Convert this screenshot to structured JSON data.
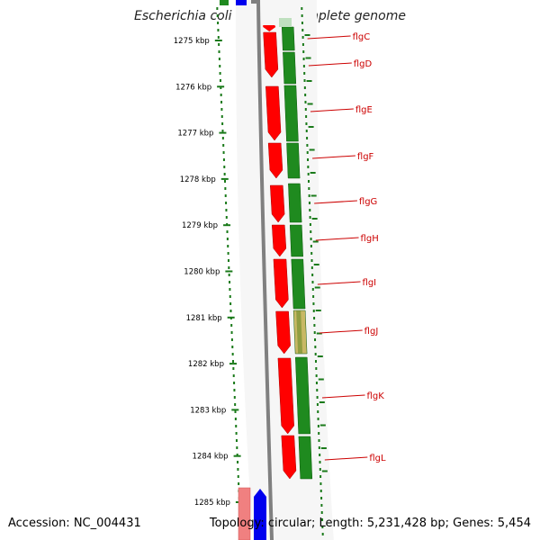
{
  "map": {
    "title": "Escherichia coli CFT073, complete genome",
    "accession": "Accession: NC_004431",
    "summary": "Topology: circular; Length: 5,231,428 bp; Genes: 5,454"
  },
  "colors": {
    "gene_strand": "#ff0000",
    "cds_track": "#1f8a1f",
    "cds_track_alt": "#c8b864",
    "backbone": "#808080",
    "label": "#cc0000",
    "scale": "#1a7a1a",
    "partial_red": "#f08080",
    "partial_blue": "#0000ee"
  },
  "scale": {
    "ticks": [
      {
        "label": "1275 kbp"
      },
      {
        "label": "1276 kbp"
      },
      {
        "label": "1277 kbp"
      },
      {
        "label": "1278 kbp"
      },
      {
        "label": "1279 kbp"
      },
      {
        "label": "1280 kbp"
      },
      {
        "label": "1281 kbp"
      },
      {
        "label": "1282 kbp"
      },
      {
        "label": "1283 kbp"
      },
      {
        "label": "1284 kbp"
      },
      {
        "label": "1285 kbp"
      }
    ]
  },
  "genes": [
    {
      "name": "flgC"
    },
    {
      "name": "flgD"
    },
    {
      "name": "flgE"
    },
    {
      "name": "flgF"
    },
    {
      "name": "flgG"
    },
    {
      "name": "flgH"
    },
    {
      "name": "flgI"
    },
    {
      "name": "flgJ"
    },
    {
      "name": "flgK"
    },
    {
      "name": "flgL"
    }
  ]
}
